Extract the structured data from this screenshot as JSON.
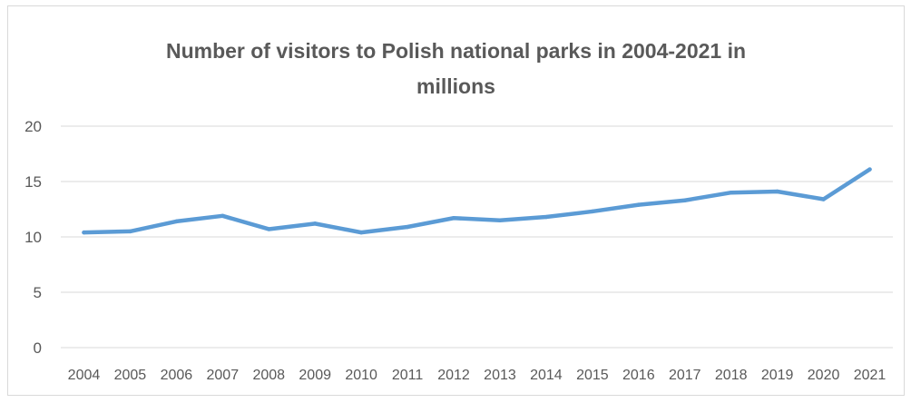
{
  "chart_data": {
    "type": "line",
    "title": "Number of visitors to Polish national parks in 2004-2021 in millions",
    "xlabel": "",
    "ylabel": "",
    "ylim": [
      0,
      20
    ],
    "yticks": [
      0,
      5,
      10,
      15,
      20
    ],
    "grid": true,
    "legend": "none",
    "categories": [
      "2004",
      "2005",
      "2006",
      "2007",
      "2008",
      "2009",
      "2010",
      "2011",
      "2012",
      "2013",
      "2014",
      "2015",
      "2016",
      "2017",
      "2018",
      "2019",
      "2020",
      "2021"
    ],
    "series": [
      {
        "color": "#5b9bd5",
        "values": [
          10.4,
          10.5,
          11.4,
          11.9,
          10.7,
          11.2,
          10.4,
          10.9,
          11.7,
          11.5,
          11.8,
          12.3,
          12.9,
          13.3,
          14.0,
          14.1,
          13.4,
          16.1
        ]
      }
    ],
    "colors": {
      "gridline": "#d9d9d9",
      "text": "#595959",
      "line": "#5b9bd5"
    }
  }
}
